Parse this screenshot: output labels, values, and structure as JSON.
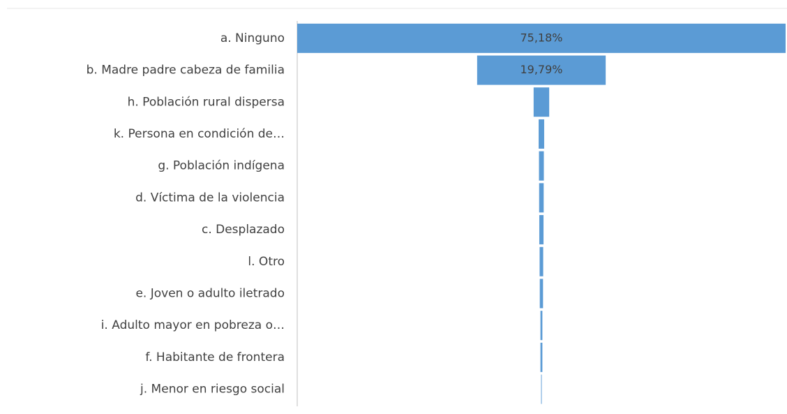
{
  "chart_data": {
    "type": "funnel",
    "categories": [
      "a. Ninguno",
      "b. Madre padre cabeza de familia",
      "h. Población rural dispersa",
      "k. Persona en condición de…",
      "g. Población indígena",
      "d. Víctima de la violencia",
      "c. Desplazado",
      "l. Otro",
      "e. Joven o adulto iletrado",
      "i. Adulto mayor en pobreza o…",
      "f. Habitante de frontera",
      "j. Menor en riesgo social"
    ],
    "values": [
      75.18,
      19.79,
      2.4,
      0.85,
      0.75,
      0.7,
      0.65,
      0.55,
      0.5,
      0.3,
      0.3,
      0.1
    ],
    "value_labels": [
      "75,18%",
      "19,79%",
      null,
      null,
      null,
      null,
      null,
      null,
      null,
      null,
      null,
      null
    ],
    "color": "#5b9bd5"
  }
}
